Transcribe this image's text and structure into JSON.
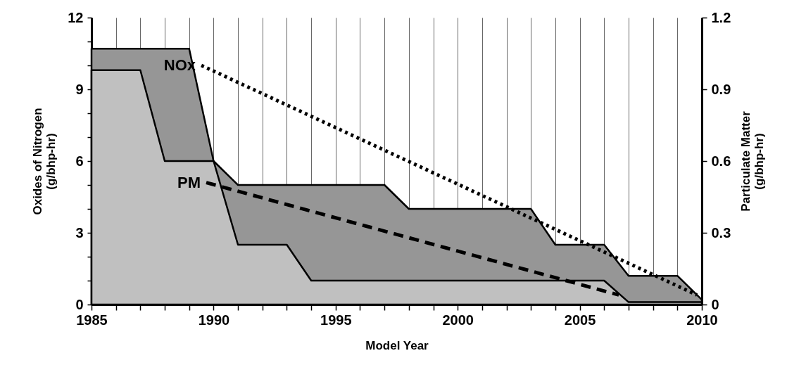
{
  "chart_data": {
    "type": "area",
    "xlabel": "Model Year",
    "ylabel": "Oxides of Nitrogen (g/bhp-hr)",
    "y2label": "Particulate Matter (g/bhp-hr)",
    "xlim": [
      1985,
      2010
    ],
    "xticks": [
      1985,
      {
        "value": 1986,
        "label": null
      },
      {
        "value": 1987,
        "label": null
      },
      {
        "value": 1988,
        "label": null
      },
      {
        "value": 1989,
        "label": null
      },
      1990,
      {
        "value": 1991,
        "label": null
      },
      {
        "value": 1992,
        "label": null
      },
      {
        "value": 1993,
        "label": null
      },
      {
        "value": 1994,
        "label": null
      },
      1995,
      {
        "value": 1996,
        "label": null
      },
      {
        "value": 1997,
        "label": null
      },
      {
        "value": 1998,
        "label": null
      },
      {
        "value": 1999,
        "label": null
      },
      2000,
      {
        "value": 2001,
        "label": null
      },
      {
        "value": 2002,
        "label": null
      },
      {
        "value": 2003,
        "label": null
      },
      {
        "value": 2004,
        "label": null
      },
      2005,
      {
        "value": 2006,
        "label": null
      },
      {
        "value": 2007,
        "label": null
      },
      {
        "value": 2008,
        "label": null
      },
      {
        "value": 2009,
        "label": null
      },
      2010
    ],
    "ylim": [
      0,
      12
    ],
    "yticks": [
      0,
      {
        "value": 1,
        "label": null
      },
      {
        "value": 2,
        "label": null
      },
      3,
      {
        "value": 4,
        "label": null
      },
      {
        "value": 5,
        "label": null
      },
      6,
      {
        "value": 7,
        "label": null
      },
      {
        "value": 8,
        "label": null
      },
      9,
      {
        "value": 10,
        "label": null
      },
      {
        "value": 11,
        "label": null
      },
      12
    ],
    "y2lim": [
      0,
      1.2
    ],
    "y2ticks": [
      0,
      0.3,
      0.6,
      0.9,
      1.2
    ],
    "grid": "x",
    "series": [
      {
        "name": "NOx",
        "color": "#969696",
        "x": [
          1985,
          1989,
          1990,
          1991,
          1997,
          1998,
          2003,
          2004,
          2006,
          2007,
          2009,
          2010
        ],
        "values": [
          10.7,
          10.7,
          6,
          5,
          5,
          4,
          4,
          2.5,
          2.5,
          1.2,
          1.2,
          0.2
        ]
      },
      {
        "name": "PM",
        "axis": "y2",
        "color": "#c0c0c0",
        "x": [
          1985,
          1987,
          1988,
          1990,
          1991,
          1993,
          1994,
          2006,
          2007,
          2010
        ],
        "values": [
          0.98,
          0.98,
          0.6,
          0.6,
          0.25,
          0.25,
          0.1,
          0.1,
          0.01,
          0.01
        ]
      },
      {
        "type": "line",
        "line_style": "dotted",
        "color": "#000000",
        "x": [
          1989.5,
          2009.8
        ],
        "values": [
          10,
          0.4
        ]
      },
      {
        "type": "line",
        "axis": "y2",
        "line_style": "dashed",
        "color": "#000000",
        "x": [
          1989.7,
          2006.6
        ],
        "values": [
          0.51,
          0.04
        ]
      }
    ]
  }
}
